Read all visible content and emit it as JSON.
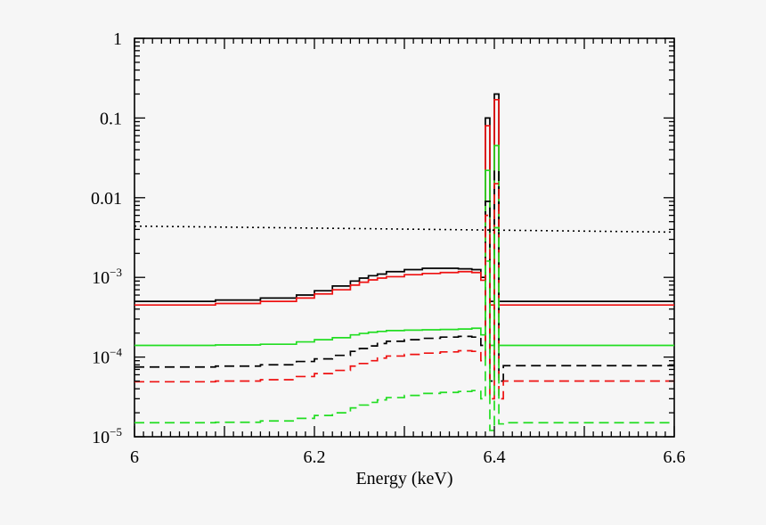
{
  "chart_data": {
    "type": "line",
    "title": "",
    "xlabel": "Energy (keV)",
    "ylabel": "",
    "xlim": [
      6.0,
      6.6
    ],
    "ylim": [
      1e-05,
      1
    ],
    "yscale": "log",
    "grid": false,
    "legend": "none",
    "x_ticks": [
      {
        "value": 6.0,
        "label": "6"
      },
      {
        "value": 6.2,
        "label": "6.2"
      },
      {
        "value": 6.4,
        "label": "6.4"
      },
      {
        "value": 6.6,
        "label": "6.6"
      }
    ],
    "y_ticks": [
      {
        "value": 1,
        "label": "1",
        "base": "",
        "exp": ""
      },
      {
        "value": 0.1,
        "label": "0.1",
        "base": "",
        "exp": ""
      },
      {
        "value": 0.01,
        "label": "0.01",
        "base": "",
        "exp": ""
      },
      {
        "value": 0.001,
        "label": "",
        "base": "10",
        "exp": "−3"
      },
      {
        "value": 0.0001,
        "label": "",
        "base": "10",
        "exp": "−4"
      },
      {
        "value": 1e-05,
        "label": "",
        "base": "10",
        "exp": "−5"
      }
    ],
    "series": [
      {
        "color": "#000000",
        "dash": "solid",
        "x": [
          6.0,
          6.09,
          6.14,
          6.18,
          6.2,
          6.22,
          6.24,
          6.25,
          6.26,
          6.27,
          6.28,
          6.3,
          6.32,
          6.34,
          6.36,
          6.375,
          6.385,
          6.39,
          6.395,
          6.4,
          6.405,
          6.41,
          6.6
        ],
        "y": [
          0.0005,
          0.00052,
          0.00055,
          0.0006,
          0.00068,
          0.00078,
          0.0009,
          0.00098,
          0.00105,
          0.0011,
          0.00118,
          0.00125,
          0.0013,
          0.0013,
          0.00128,
          0.00125,
          0.001,
          0.1,
          0.0005,
          0.2,
          0.0005,
          0.0005,
          0.0005
        ]
      },
      {
        "color": "#ee1111",
        "dash": "solid",
        "x": [
          6.0,
          6.09,
          6.14,
          6.18,
          6.2,
          6.22,
          6.24,
          6.25,
          6.26,
          6.27,
          6.28,
          6.3,
          6.32,
          6.34,
          6.36,
          6.375,
          6.385,
          6.39,
          6.395,
          6.4,
          6.405,
          6.41,
          6.6
        ],
        "y": [
          0.00045,
          0.00047,
          0.0005,
          0.00055,
          0.00062,
          0.0007,
          0.0008,
          0.00087,
          0.00093,
          0.00098,
          0.00102,
          0.00108,
          0.00112,
          0.00115,
          0.00118,
          0.00115,
          0.00092,
          0.08,
          0.00045,
          0.17,
          0.00045,
          0.00045,
          0.00045
        ]
      },
      {
        "color": "#22dd22",
        "dash": "solid",
        "x": [
          6.0,
          6.09,
          6.14,
          6.18,
          6.2,
          6.22,
          6.24,
          6.25,
          6.26,
          6.27,
          6.28,
          6.3,
          6.32,
          6.34,
          6.36,
          6.375,
          6.385,
          6.39,
          6.395,
          6.4,
          6.405,
          6.41,
          6.6
        ],
        "y": [
          0.00014,
          0.000142,
          0.000145,
          0.000155,
          0.000165,
          0.000175,
          0.00019,
          0.000198,
          0.000205,
          0.00021,
          0.000215,
          0.000218,
          0.00022,
          0.000222,
          0.000225,
          0.00023,
          0.00019,
          0.022,
          0.00014,
          0.045,
          0.00014,
          0.00014,
          0.00014
        ]
      },
      {
        "color": "#000000",
        "dash": "dashed",
        "x": [
          6.0,
          6.09,
          6.14,
          6.18,
          6.2,
          6.22,
          6.24,
          6.25,
          6.26,
          6.27,
          6.28,
          6.3,
          6.32,
          6.34,
          6.36,
          6.375,
          6.385,
          6.39,
          6.395,
          6.4,
          6.405,
          6.41,
          6.6
        ],
        "y": [
          7.5e-05,
          7.7e-05,
          8e-05,
          8.8e-05,
          9.5e-05,
          0.000105,
          0.000118,
          0.000128,
          0.000138,
          0.000148,
          0.000158,
          0.000165,
          0.000172,
          0.000178,
          0.000182,
          0.000178,
          0.00014,
          0.009,
          5e-05,
          0.022,
          5e-05,
          7.8e-05,
          7.8e-05
        ]
      },
      {
        "color": "#ee1111",
        "dash": "dashed",
        "x": [
          6.0,
          6.09,
          6.14,
          6.18,
          6.2,
          6.22,
          6.24,
          6.25,
          6.26,
          6.27,
          6.28,
          6.3,
          6.32,
          6.34,
          6.36,
          6.375,
          6.385,
          6.39,
          6.395,
          6.4,
          6.405,
          6.41,
          6.6
        ],
        "y": [
          4.9e-05,
          5e-05,
          5.2e-05,
          5.7e-05,
          6.2e-05,
          6.8e-05,
          7.7e-05,
          8.3e-05,
          9e-05,
          9.7e-05,
          0.000103,
          0.000108,
          0.000112,
          0.000116,
          0.00012,
          0.000118,
          9e-05,
          0.006,
          3e-05,
          0.015,
          3e-05,
          5e-05,
          5e-05
        ]
      },
      {
        "color": "#22dd22",
        "dash": "dashed",
        "x": [
          6.0,
          6.09,
          6.14,
          6.18,
          6.2,
          6.22,
          6.24,
          6.25,
          6.26,
          6.27,
          6.28,
          6.3,
          6.32,
          6.34,
          6.36,
          6.375,
          6.385,
          6.39,
          6.395,
          6.4,
          6.405,
          6.41,
          6.6
        ],
        "y": [
          1.5e-05,
          1.52e-05,
          1.58e-05,
          1.7e-05,
          1.85e-05,
          2e-05,
          2.3e-05,
          2.5e-05,
          2.7e-05,
          2.9e-05,
          3.1e-05,
          3.3e-05,
          3.5e-05,
          3.6e-05,
          3.7e-05,
          3.8e-05,
          3e-05,
          0.0016,
          1.2e-05,
          0.0042,
          1.45e-05,
          1.5e-05,
          1.5e-05
        ]
      },
      {
        "color": "#000000",
        "dash": "dotted",
        "x": [
          6.0,
          6.6
        ],
        "y": [
          0.0044,
          0.0037
        ]
      }
    ]
  }
}
